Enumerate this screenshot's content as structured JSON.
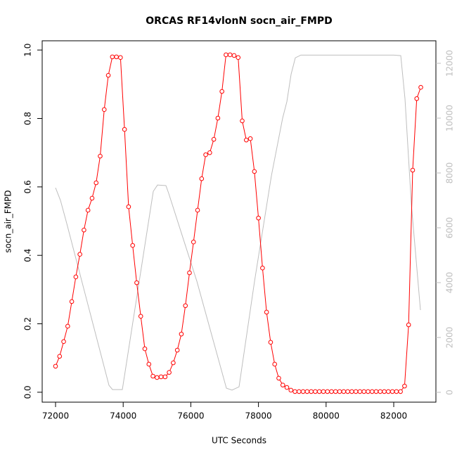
{
  "chart_data": {
    "type": "line",
    "title": "ORCAS RF14vlonN socn_air_FMPD",
    "x_label": "UTC Seconds",
    "y_label": "socn_air_FMPD",
    "xlim": [
      71605,
      83247
    ],
    "ylim": [
      -0.029,
      1.027
    ],
    "y2lim": [
      -359,
      12821
    ],
    "xticks": [
      72000,
      74000,
      76000,
      78000,
      80000,
      82000
    ],
    "yticks": [
      {
        "value": 0,
        "label": "0.0"
      },
      {
        "value": 0.2,
        "label": "0.2"
      },
      {
        "value": 0.4,
        "label": "0.4"
      },
      {
        "value": 0.6,
        "label": "0.6"
      },
      {
        "value": 0.8,
        "label": "0.8"
      },
      {
        "value": 1,
        "label": "1.0"
      }
    ],
    "y2ticks": [
      0,
      2000,
      4000,
      6000,
      8000,
      10000,
      12000
    ],
    "series": [
      {
        "color": "#bebebe",
        "axis": "y2",
        "markers": false,
        "x": [
          72000,
          72146,
          72333,
          73580,
          73684,
          73975,
          74890,
          75015,
          75264,
          75347,
          76179,
          77052,
          77218,
          77426,
          77884,
          78383,
          78715,
          78840,
          78965,
          79090,
          79256,
          82000,
          82208,
          82333,
          82520,
          82790
        ],
        "values": [
          7460,
          7000,
          6150,
          256,
          100,
          100,
          7330,
          7560,
          7540,
          7250,
          4050,
          150,
          80,
          200,
          4050,
          7900,
          10000,
          10600,
          11600,
          12200,
          12300,
          12300,
          12280,
          10700,
          6870,
          3000
        ]
      },
      {
        "color": "#ff0000",
        "axis": "y",
        "markers": true,
        "x": [
          72000,
          72120,
          72240,
          72360,
          72480,
          72600,
          72720,
          72840,
          72960,
          73080,
          73200,
          73320,
          73440,
          73560,
          73680,
          73800,
          73920,
          74040,
          74160,
          74280,
          74400,
          74520,
          74640,
          74760,
          74880,
          75000,
          75120,
          75240,
          75360,
          75480,
          75600,
          75720,
          75840,
          75960,
          76080,
          76200,
          76320,
          76440,
          76560,
          76680,
          76800,
          76920,
          77040,
          77160,
          77280,
          77400,
          77520,
          77640,
          77760,
          77880,
          78000,
          78120,
          78240,
          78360,
          78480,
          78600,
          78720,
          78840,
          78960,
          79080,
          79200,
          79320,
          79440,
          79560,
          79680,
          79800,
          79920,
          80040,
          80160,
          80280,
          80400,
          80520,
          80640,
          80760,
          80880,
          81000,
          81120,
          81240,
          81360,
          81480,
          81600,
          81720,
          81840,
          81960,
          82080,
          82200,
          82320,
          82440,
          82560,
          82680,
          82800
        ],
        "values": [
          0.076,
          0.105,
          0.148,
          0.193,
          0.265,
          0.337,
          0.403,
          0.474,
          0.532,
          0.567,
          0.612,
          0.69,
          0.826,
          0.926,
          0.98,
          0.98,
          0.978,
          0.768,
          0.542,
          0.429,
          0.32,
          0.222,
          0.127,
          0.082,
          0.047,
          0.043,
          0.045,
          0.045,
          0.058,
          0.086,
          0.123,
          0.17,
          0.253,
          0.349,
          0.439,
          0.532,
          0.624,
          0.694,
          0.7,
          0.739,
          0.801,
          0.879,
          0.986,
          0.986,
          0.984,
          0.978,
          0.793,
          0.737,
          0.741,
          0.645,
          0.509,
          0.363,
          0.234,
          0.146,
          0.082,
          0.041,
          0.021,
          0.014,
          0.006,
          0.002,
          0.002,
          0.002,
          0.002,
          0.002,
          0.002,
          0.002,
          0.002,
          0.002,
          0.002,
          0.002,
          0.002,
          0.002,
          0.002,
          0.002,
          0.002,
          0.002,
          0.002,
          0.002,
          0.002,
          0.002,
          0.002,
          0.002,
          0.002,
          0.002,
          0.002,
          0.002,
          0.018,
          0.197,
          0.649,
          0.858,
          0.891
        ]
      }
    ]
  }
}
